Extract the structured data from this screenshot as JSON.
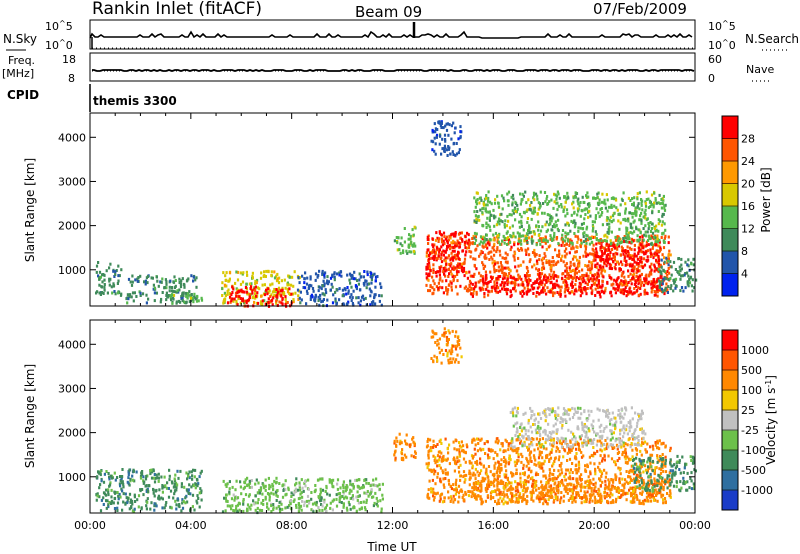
{
  "header": {
    "station": "Rankin Inlet (fitACF)",
    "beam": "Beam 09",
    "date": "07/Feb/2009"
  },
  "summary_panels": {
    "nsky_label": "N.Sky",
    "nsky_ticks": [
      "10^5",
      "10^0"
    ],
    "nsearch_label": "N.Search",
    "nsearch_ticks": [
      "10^5",
      "10^0"
    ],
    "freq_label": "Freq.",
    "freq_unit": "[MHz]",
    "freq_ticks": [
      "18",
      "8"
    ],
    "nave_label": "Nave",
    "nave_ticks": [
      "60",
      "0"
    ],
    "cpid_label": "CPID",
    "cpid_value": "themis 3300"
  },
  "chart_data": [
    {
      "type": "heatmap",
      "title": "",
      "xlabel": "Time UT",
      "ylabel": "Slant Range [km]",
      "x_ticks": [
        "00:00",
        "04:00",
        "08:00",
        "12:00",
        "16:00",
        "20:00",
        "00:00"
      ],
      "xlim_hours": [
        0,
        24
      ],
      "y_ticks": [
        1000,
        2000,
        3000,
        4000
      ],
      "ylim": [
        180,
        4550
      ],
      "colorbar_label": "Power [dB]",
      "colorbar_ticks": [
        "4",
        "8",
        "12",
        "16",
        "20",
        "24",
        "28"
      ],
      "colors": [
        "#0022ee",
        "#2255aa",
        "#3f8a5a",
        "#56b84c",
        "#d8c800",
        "#ff9900",
        "#ff5500",
        "#ff0000"
      ],
      "echo_regions": [
        {
          "t0": 0.2,
          "t1": 1.2,
          "r0": 450,
          "r1": 1200,
          "level": 2
        },
        {
          "t0": 1.4,
          "t1": 4.2,
          "r0": 280,
          "r1": 900,
          "level": 2
        },
        {
          "t0": 3.2,
          "t1": 4.4,
          "r0": 250,
          "r1": 500,
          "level": 3
        },
        {
          "t0": 5.2,
          "t1": 8.3,
          "r0": 250,
          "r1": 1000,
          "level": 4
        },
        {
          "t0": 5.4,
          "t1": 8.0,
          "r0": 200,
          "r1": 650,
          "level": 7
        },
        {
          "t0": 8.2,
          "t1": 11.6,
          "r0": 220,
          "r1": 1000,
          "level": 1
        },
        {
          "t0": 12.0,
          "t1": 12.9,
          "r0": 1400,
          "r1": 2000,
          "level": 3
        },
        {
          "t0": 13.3,
          "t1": 23.0,
          "r0": 480,
          "r1": 1800,
          "level": 6
        },
        {
          "t0": 15.0,
          "t1": 22.8,
          "r0": 420,
          "r1": 900,
          "level": 7
        },
        {
          "t0": 13.3,
          "t1": 15.0,
          "r0": 900,
          "r1": 1900,
          "level": 7
        },
        {
          "t0": 20.0,
          "t1": 22.6,
          "r0": 1000,
          "r1": 1700,
          "level": 7
        },
        {
          "t0": 15.2,
          "t1": 22.8,
          "r0": 1600,
          "r1": 2800,
          "level": 3
        },
        {
          "t0": 13.5,
          "t1": 14.7,
          "r0": 3600,
          "r1": 4400,
          "level": 1
        },
        {
          "t0": 22.5,
          "t1": 24.0,
          "r0": 500,
          "r1": 1300,
          "level": 2
        }
      ]
    },
    {
      "type": "heatmap",
      "title": "",
      "xlabel": "Time UT",
      "ylabel": "Slant Range [km]",
      "x_ticks": [
        "00:00",
        "04:00",
        "08:00",
        "12:00",
        "16:00",
        "20:00",
        "00:00"
      ],
      "xlim_hours": [
        0,
        24
      ],
      "y_ticks": [
        1000,
        2000,
        3000,
        4000
      ],
      "ylim": [
        180,
        4550
      ],
      "colorbar_label": "Velocity [m s^-1]",
      "colorbar_ticks": [
        "1000",
        "500",
        "100",
        "25",
        "-25",
        "-100",
        "-500",
        "-1000"
      ],
      "colors": [
        "#1a3cc8",
        "#2f6fa0",
        "#3f8a5a",
        "#6cc04a",
        "#c0c0c0",
        "#f2c800",
        "#ff8800",
        "#ff5500",
        "#ff0000"
      ],
      "echo_regions": [
        {
          "t0": 0.2,
          "t1": 4.4,
          "r0": 260,
          "r1": 1200,
          "level": 2
        },
        {
          "t0": 5.2,
          "t1": 8.3,
          "r0": 220,
          "r1": 1000,
          "level": 3
        },
        {
          "t0": 8.2,
          "t1": 11.6,
          "r0": 220,
          "r1": 1000,
          "level": 3
        },
        {
          "t0": 12.0,
          "t1": 12.9,
          "r0": 1400,
          "r1": 2000,
          "level": 6
        },
        {
          "t0": 13.3,
          "t1": 23.0,
          "r0": 450,
          "r1": 1900,
          "level": 6
        },
        {
          "t0": 15.0,
          "t1": 22.8,
          "r0": 420,
          "r1": 1000,
          "level": 6
        },
        {
          "t0": 16.6,
          "t1": 22.0,
          "r0": 1700,
          "r1": 2600,
          "level": 4
        },
        {
          "t0": 21.5,
          "t1": 24.0,
          "r0": 700,
          "r1": 1500,
          "level": 2
        },
        {
          "t0": 13.5,
          "t1": 14.7,
          "r0": 3600,
          "r1": 4400,
          "level": 6
        }
      ]
    }
  ]
}
